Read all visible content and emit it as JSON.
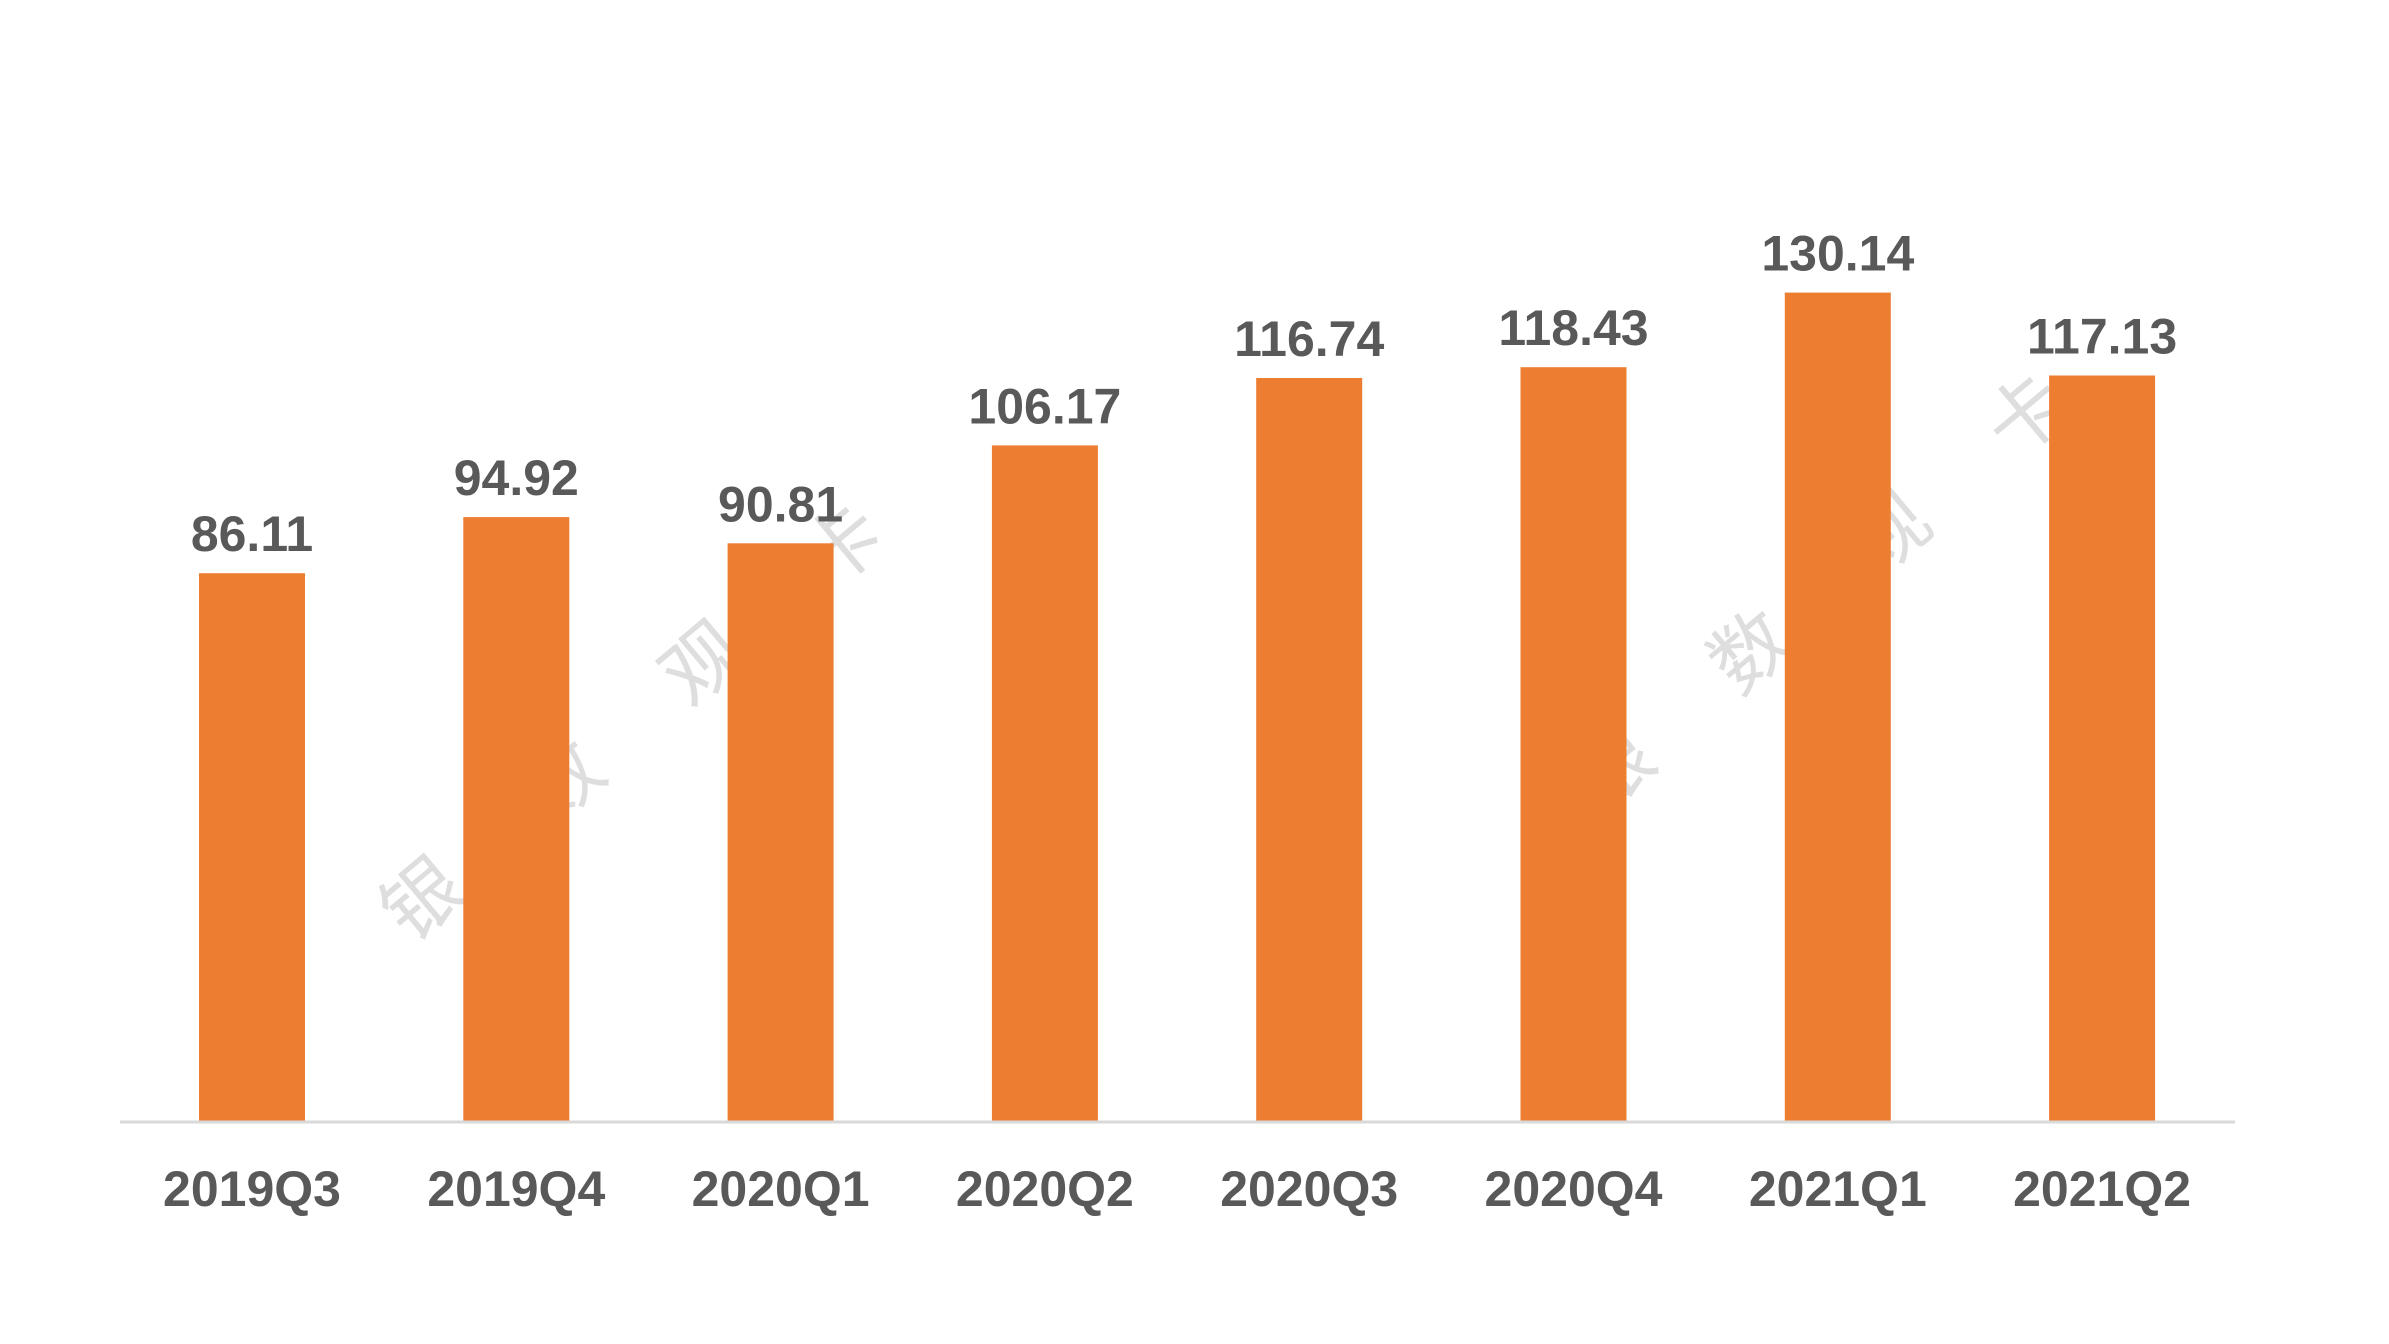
{
  "chart_data": {
    "type": "bar",
    "title": "",
    "xlabel": "",
    "ylabel": "",
    "categories": [
      "2019Q3",
      "2019Q4",
      "2020Q1",
      "2020Q2",
      "2020Q3",
      "2020Q4",
      "2021Q1",
      "2021Q2"
    ],
    "values": [
      86.11,
      94.92,
      90.81,
      106.17,
      116.74,
      118.43,
      130.14,
      117.13
    ],
    "data_labels": [
      "86.11",
      "94.92",
      "90.81",
      "106.17",
      "116.74",
      "118.43",
      "130.14",
      "117.13"
    ],
    "ylim": [
      0,
      160
    ],
    "grid": false,
    "legend": "none",
    "bar_color": "#ED7D31",
    "axis_color": "#D9D9D9",
    "label_color": "#595959"
  },
  "watermark": {
    "chars": [
      "银",
      "数",
      "观",
      "卡"
    ],
    "color": "#DEDEDE"
  }
}
